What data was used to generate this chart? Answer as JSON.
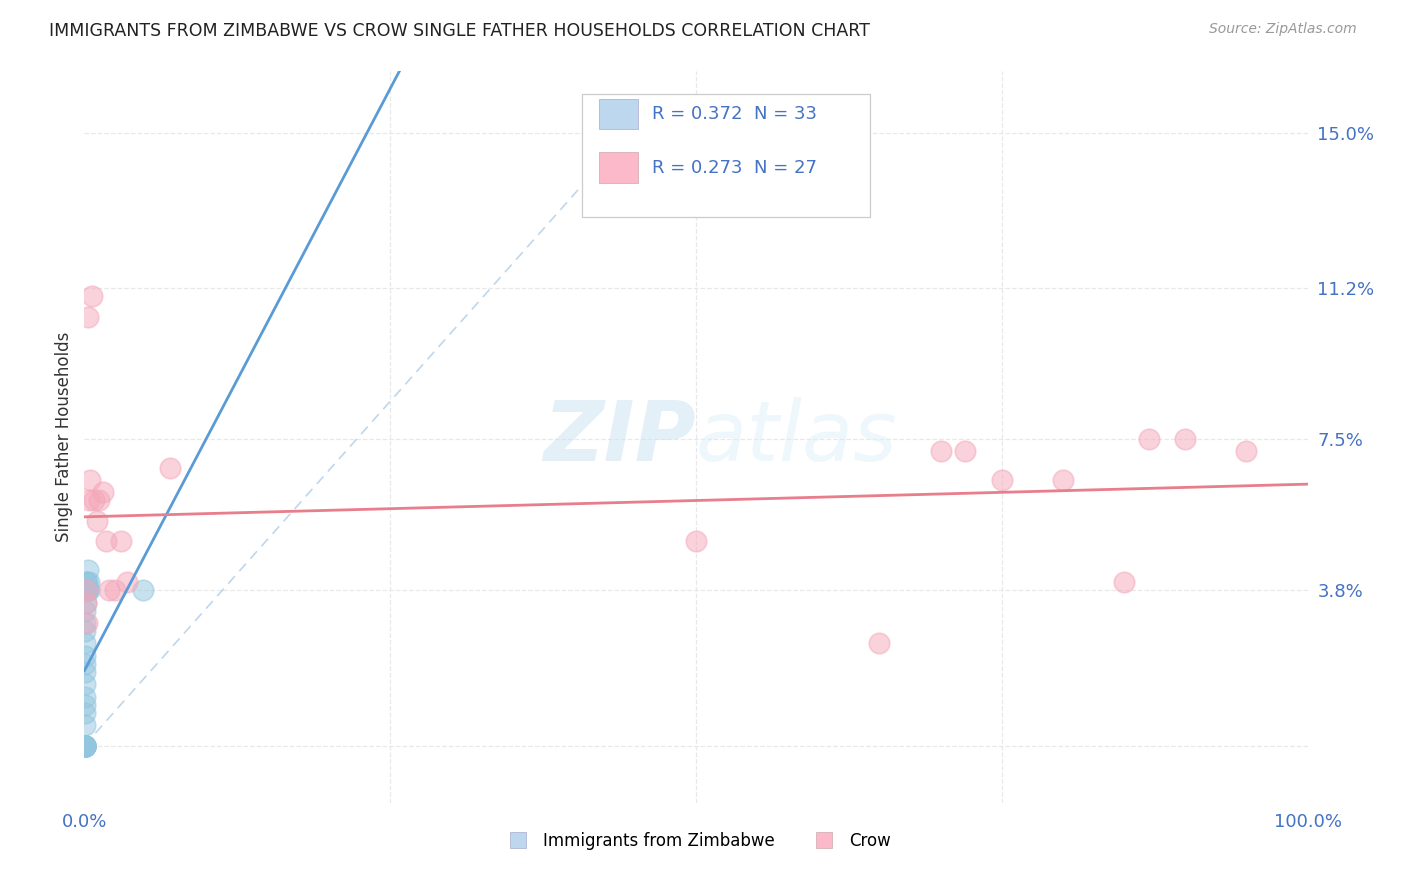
{
  "title": "IMMIGRANTS FROM ZIMBABWE VS CROW SINGLE FATHER HOUSEHOLDS CORRELATION CHART",
  "source": "Source: ZipAtlas.com",
  "ylabel": "Single Father Households",
  "blue_color": "#92C5DE",
  "pink_color": "#F4A7B9",
  "trend_blue_color": "#5B9BD5",
  "trend_pink_color": "#E87D8B",
  "dashed_color": "#AECDE8",
  "legend_blue_fill": "#BDD7EE",
  "legend_pink_fill": "#FCB9C9",
  "text_blue": "#4472C4",
  "xlim": [
    0.0,
    1.0
  ],
  "ylim": [
    -0.014,
    0.165
  ],
  "yticks": [
    0.0,
    0.038,
    0.075,
    0.112,
    0.15
  ],
  "ytick_labels": [
    "",
    "3.8%",
    "7.5%",
    "11.2%",
    "15.0%"
  ],
  "xticks": [
    0.0,
    1.0
  ],
  "xtick_labels": [
    "0.0%",
    "100.0%"
  ],
  "legend_label1": "Immigrants from Zimbabwe",
  "legend_label2": "Crow",
  "watermark": "ZIPatlas",
  "zimbabwe_x": [
    0.0004,
    0.0004,
    0.0004,
    0.0004,
    0.0005,
    0.0005,
    0.0005,
    0.0005,
    0.0005,
    0.0005,
    0.0005,
    0.0005,
    0.0005,
    0.0005,
    0.0006,
    0.0006,
    0.0007,
    0.0007,
    0.0008,
    0.0008,
    0.0009,
    0.0009,
    0.001,
    0.001,
    0.0012,
    0.0015,
    0.002,
    0.002,
    0.003,
    0.003,
    0.004,
    0.004,
    0.048
  ],
  "zimbabwe_y": [
    0.0,
    0.0,
    0.0,
    0.0,
    0.0,
    0.0,
    0.0,
    0.0,
    0.0,
    0.0,
    0.005,
    0.008,
    0.01,
    0.012,
    0.015,
    0.018,
    0.02,
    0.022,
    0.025,
    0.028,
    0.03,
    0.033,
    0.035,
    0.038,
    0.038,
    0.04,
    0.038,
    0.04,
    0.038,
    0.043,
    0.038,
    0.04,
    0.038
  ],
  "crow_x": [
    0.001,
    0.0015,
    0.002,
    0.003,
    0.004,
    0.005,
    0.006,
    0.008,
    0.01,
    0.012,
    0.015,
    0.018,
    0.02,
    0.025,
    0.03,
    0.035,
    0.07,
    0.5,
    0.65,
    0.7,
    0.72,
    0.75,
    0.8,
    0.85,
    0.87,
    0.9,
    0.95
  ],
  "crow_y": [
    0.035,
    0.038,
    0.03,
    0.105,
    0.06,
    0.065,
    0.11,
    0.06,
    0.055,
    0.06,
    0.062,
    0.05,
    0.038,
    0.038,
    0.05,
    0.04,
    0.068,
    0.05,
    0.025,
    0.072,
    0.072,
    0.065,
    0.065,
    0.04,
    0.075,
    0.075,
    0.072
  ],
  "bg_color": "#FFFFFF",
  "grid_color": "#E8E8E8"
}
